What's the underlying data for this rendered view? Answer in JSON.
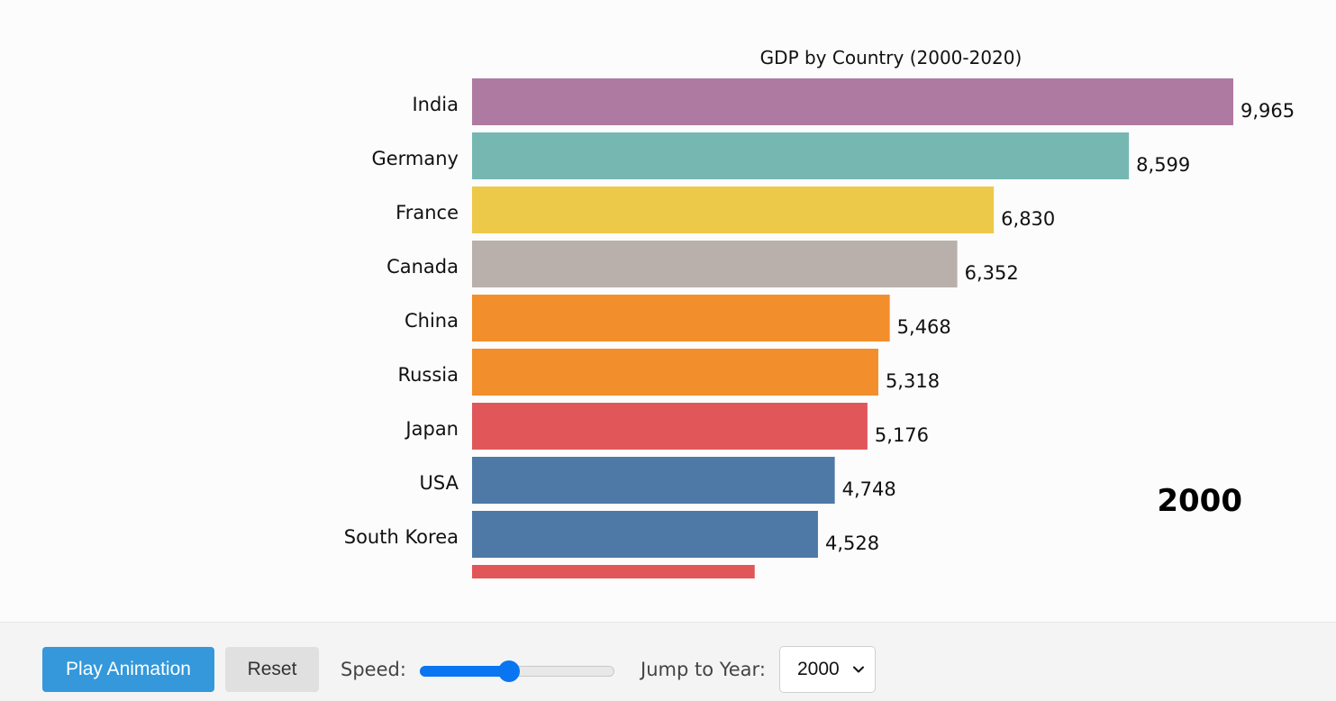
{
  "chart_data": {
    "type": "bar",
    "orientation": "horizontal",
    "title": "GDP by Country (2000-2020)",
    "year": "2000",
    "categories": [
      "India",
      "Germany",
      "France",
      "Canada",
      "China",
      "Russia",
      "Japan",
      "USA",
      "South Korea"
    ],
    "values": [
      9965,
      8599,
      6830,
      6352,
      5468,
      5318,
      5176,
      4748,
      4528
    ],
    "value_labels": [
      "9,965",
      "8,599",
      "6,830",
      "6,352",
      "5,468",
      "5,318",
      "5,176",
      "4,748",
      "4,528"
    ],
    "colors": [
      "#af7aa1",
      "#76b7b2",
      "#edc949",
      "#bab0ab",
      "#f28e2c",
      "#f28e2c",
      "#e15759",
      "#4e79a7",
      "#4e79a7"
    ],
    "partial_bar": {
      "value": 3700,
      "color": "#e15759"
    },
    "xlim": [
      0,
      9965
    ],
    "legend": "none",
    "grid": false
  },
  "controls": {
    "play_label": "Play Animation",
    "reset_label": "Reset",
    "speed_label": "Speed:",
    "speed_level": 0.46,
    "jump_label": "Jump to Year:",
    "selected_year": "2000"
  }
}
